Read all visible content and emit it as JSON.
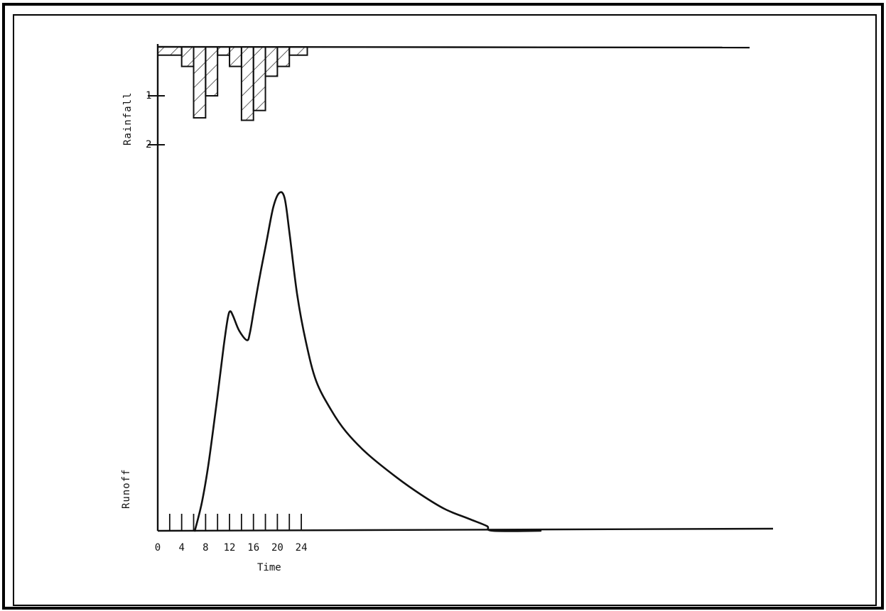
{
  "chart_data": {
    "type": "bar+line",
    "title": "",
    "time_axis": {
      "label": "Time",
      "tick_labels": [
        "0",
        "4",
        "8",
        "12",
        "16",
        "20",
        "24"
      ],
      "minor_ticks": [
        2,
        4,
        6,
        8,
        10,
        12,
        14,
        16,
        18,
        20,
        22,
        24
      ],
      "range": [
        0,
        64
      ]
    },
    "rainfall": {
      "label": "Rainfall",
      "axis_tick_labels": [
        "1",
        "2"
      ],
      "axis_ticks": [
        1,
        2
      ],
      "range": [
        0,
        2
      ],
      "inverted": true,
      "bars": [
        {
          "start": 0,
          "end": 4,
          "value": 0.17
        },
        {
          "start": 4,
          "end": 6,
          "value": 0.4
        },
        {
          "start": 6,
          "end": 8,
          "value": 1.45
        },
        {
          "start": 8,
          "end": 10,
          "value": 1.0
        },
        {
          "start": 10,
          "end": 12,
          "value": 0.17
        },
        {
          "start": 12,
          "end": 14,
          "value": 0.4
        },
        {
          "start": 14,
          "end": 16,
          "value": 1.5
        },
        {
          "start": 16,
          "end": 18,
          "value": 1.3
        },
        {
          "start": 18,
          "end": 20,
          "value": 0.6
        },
        {
          "start": 20,
          "end": 22,
          "value": 0.4
        },
        {
          "start": 22,
          "end": 25,
          "value": 0.17
        }
      ],
      "hatched": true
    },
    "runoff": {
      "label": "Runoff",
      "points": [
        [
          6.2,
          0.0
        ],
        [
          7.4,
          0.06
        ],
        [
          8.5,
          0.14
        ],
        [
          10.0,
          0.28
        ],
        [
          11.0,
          0.38
        ],
        [
          11.7,
          0.44
        ],
        [
          12.1,
          0.455
        ],
        [
          12.6,
          0.445
        ],
        [
          13.6,
          0.415
        ],
        [
          14.9,
          0.395
        ],
        [
          15.4,
          0.41
        ],
        [
          16.1,
          0.46
        ],
        [
          17.1,
          0.53
        ],
        [
          18.2,
          0.6
        ],
        [
          19.3,
          0.67
        ],
        [
          20.3,
          0.7
        ],
        [
          21.2,
          0.69
        ],
        [
          22.0,
          0.62
        ],
        [
          23.3,
          0.49
        ],
        [
          24.8,
          0.39
        ],
        [
          26.5,
          0.31
        ],
        [
          29.0,
          0.25
        ],
        [
          31.5,
          0.205
        ],
        [
          35.0,
          0.16
        ],
        [
          40.0,
          0.11
        ],
        [
          44.0,
          0.075
        ],
        [
          48.0,
          0.045
        ],
        [
          52.0,
          0.025
        ],
        [
          55.0,
          0.01
        ],
        [
          56.0,
          0.0
        ],
        [
          64.0,
          0.0
        ]
      ]
    }
  }
}
